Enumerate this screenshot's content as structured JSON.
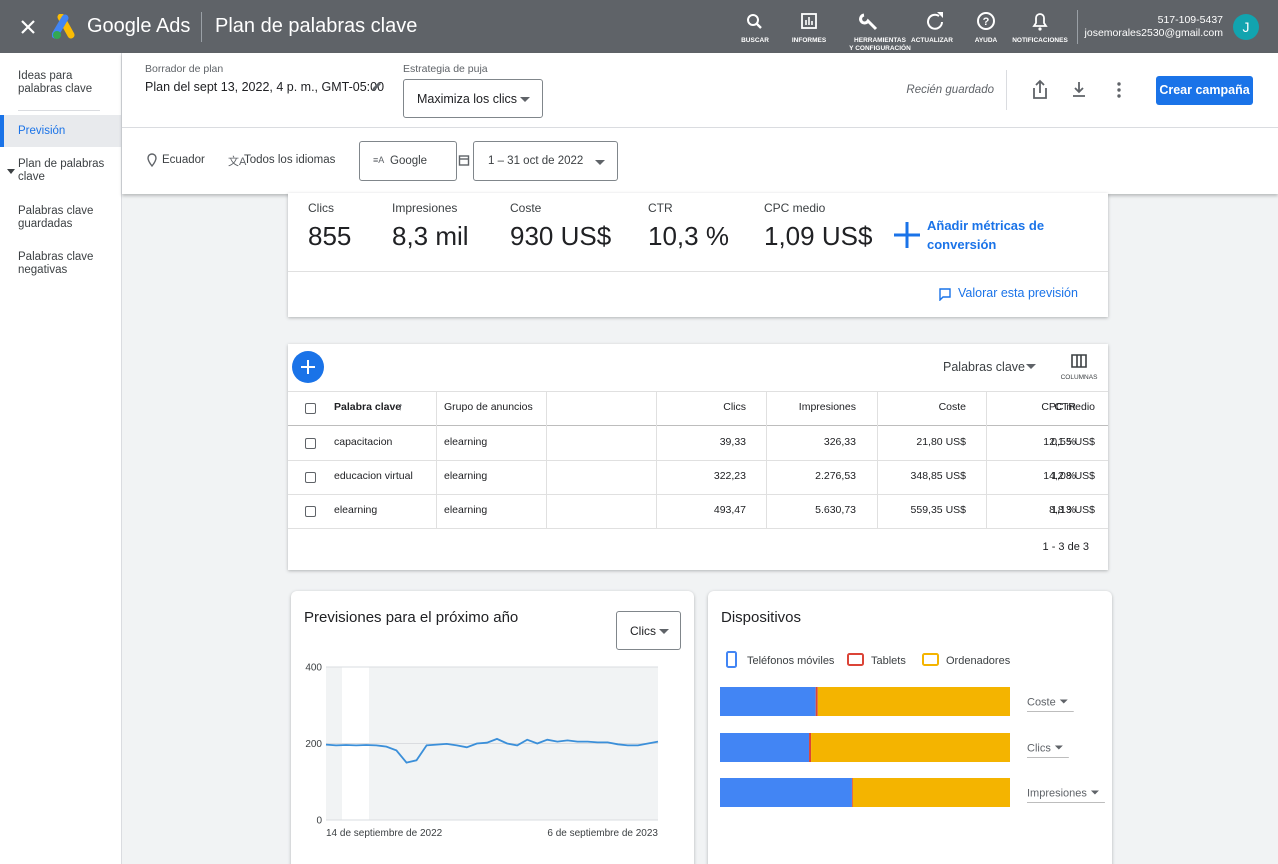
{
  "header": {
    "product": "Google Ads",
    "page_title": "Plan de palabras clave",
    "nav": [
      "BUSCAR",
      "INFORMES",
      "HERRAMIENTAS\nY CONFIGURACIÓN",
      "ACTUALIZAR",
      "AYUDA",
      "NOTIFICACIONES"
    ],
    "account_id": "517-109-5437",
    "email": "josemorales2530@gmail.com",
    "avatar": "J"
  },
  "sidebar": {
    "items": [
      "Ideas para palabras clave",
      "Previsión",
      "Plan de palabras clave",
      "Palabras clave guardadas",
      "Palabras clave negativas"
    ],
    "selected": 1
  },
  "plan": {
    "draft_label": "Borrador de plan",
    "draft_name": "Plan del sept 13, 2022, 4 p. m., GMT-05:00",
    "bid_label": "Estrategia de puja",
    "bid_value": "Maximiza los clics",
    "status": "Recién guardado",
    "create_button": "Crear campaña"
  },
  "filters": {
    "location": "Ecuador",
    "language": "Todos los idiomas",
    "network": "Google",
    "date_range": "1 – 31 oct de 2022"
  },
  "metrics": {
    "items": [
      {
        "label": "Clics",
        "value": "855"
      },
      {
        "label": "Impresiones",
        "value": "8,3 mil"
      },
      {
        "label": "Coste",
        "value": "930 US$"
      },
      {
        "label": "CTR",
        "value": "10,3 %"
      },
      {
        "label": "CPC medio",
        "value": "1,09 US$"
      }
    ],
    "add_conversion": "Añadir métricas de conversión",
    "rate": "Valorar esta previsión"
  },
  "table": {
    "selector": "Palabras clave",
    "columns_button": "COLUMNAS",
    "headers": [
      "Palabra clave",
      "Grupo de anuncios",
      "Clics",
      "Impresiones",
      "Coste",
      "CTR",
      "CPC medio"
    ],
    "rows": [
      [
        "capacitacion",
        "elearning",
        "39,33",
        "326,33",
        "21,80 US$",
        "12,1 %",
        "0,55 US$"
      ],
      [
        "educacion virtual",
        "elearning",
        "322,23",
        "2.276,53",
        "348,85 US$",
        "14,2 %",
        "1,08 US$"
      ],
      [
        "elearning",
        "elearning",
        "493,47",
        "5.630,73",
        "559,35 US$",
        "8,8 %",
        "1,13 US$"
      ]
    ],
    "pagination": "1 - 3 de 3"
  },
  "chart_data": [
    {
      "type": "line",
      "title": "Previsiones para el próximo año",
      "selector": "Clics",
      "categories": [
        "14 de septiembre de 2022",
        null,
        null,
        null,
        null,
        null,
        null,
        null,
        null,
        null,
        null,
        null,
        null,
        null,
        null,
        null,
        null,
        null,
        null,
        null,
        null,
        null,
        null,
        null,
        null,
        null,
        null,
        null,
        null,
        null,
        null,
        null,
        null,
        "6 de septiembre de 2023"
      ],
      "values": [
        197,
        195,
        196,
        195,
        196,
        195,
        192,
        182,
        150,
        156,
        195,
        197,
        199,
        195,
        190,
        200,
        202,
        212,
        200,
        195,
        210,
        200,
        210,
        205,
        208,
        205,
        205,
        203,
        203,
        198,
        195,
        195,
        200,
        205
      ],
      "color": "#3b8fd9",
      "ylim": [
        0,
        400
      ],
      "yticks": [
        0,
        200,
        400
      ],
      "grid": true
    },
    {
      "type": "hbar-stacked",
      "title": "Dispositivos",
      "categories": [
        "Coste",
        "Clics",
        "Impresiones"
      ],
      "series": [
        {
          "name": "Teléfonos móviles",
          "color": "#4285f4",
          "values": [
            33,
            30.7,
            45.5
          ]
        },
        {
          "name": "Tablets",
          "color": "#db4437",
          "values": [
            0.7,
            0.7,
            0.3
          ]
        },
        {
          "name": "Ordenadores",
          "color": "#f4b400",
          "values": [
            66.3,
            68.6,
            54.2
          ]
        }
      ],
      "xlim": [
        0,
        100
      ],
      "legend": "top"
    }
  ]
}
